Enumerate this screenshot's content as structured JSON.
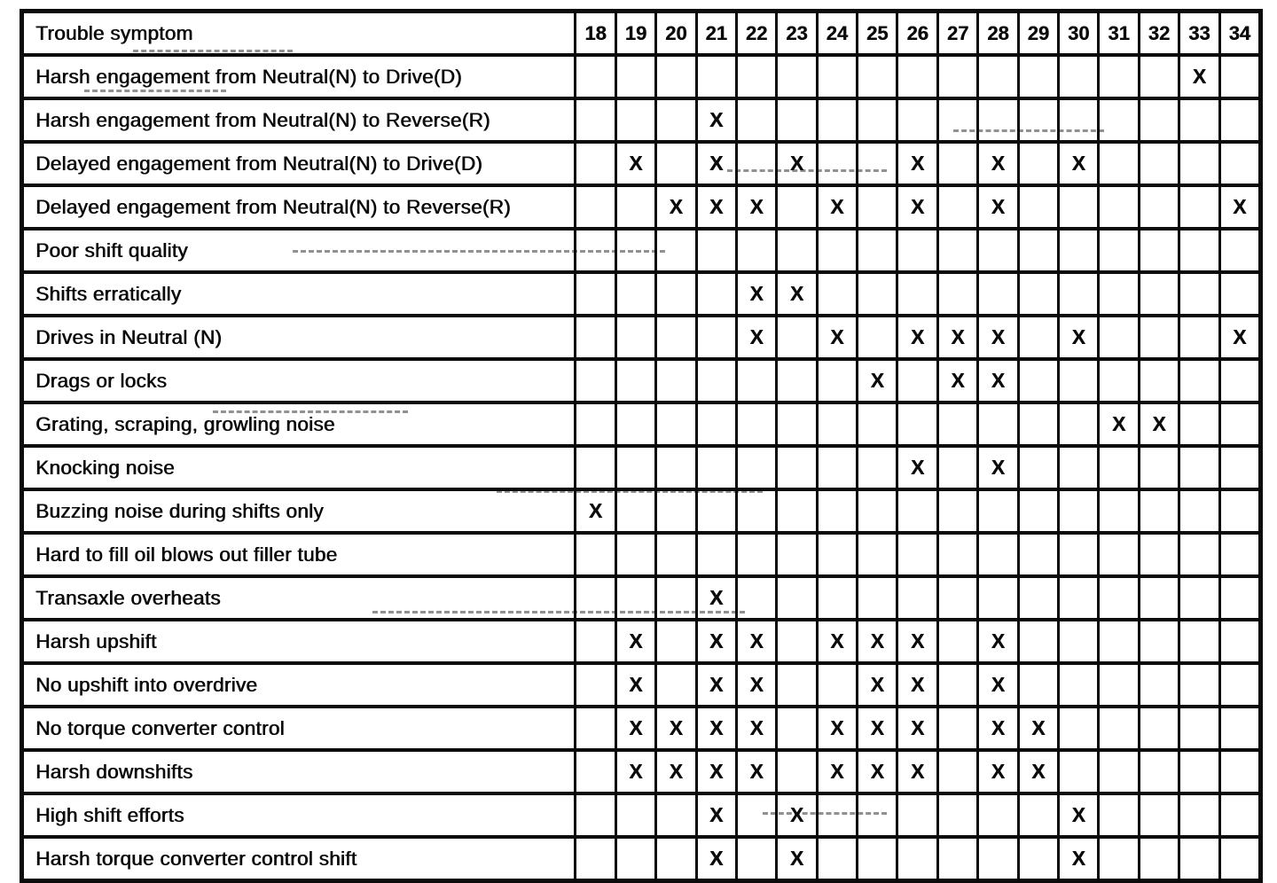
{
  "title": "Trouble symptom diagnosis chart",
  "colors": {
    "ink": "#0b0b0b",
    "paper": "#ffffff"
  },
  "table": {
    "header_label": "Trouble symptom",
    "columns": [
      "18",
      "19",
      "20",
      "21",
      "22",
      "23",
      "24",
      "25",
      "26",
      "27",
      "28",
      "29",
      "30",
      "31",
      "32",
      "33",
      "34"
    ],
    "mark_glyph": "X",
    "rows": [
      {
        "label": "Harsh engagement from Neutral(N) to Drive(D)",
        "marks": [
          "33"
        ]
      },
      {
        "label": "Harsh engagement from Neutral(N) to Reverse(R)",
        "marks": [
          "21"
        ]
      },
      {
        "label": "Delayed engagement from Neutral(N) to Drive(D)",
        "marks": [
          "19",
          "21",
          "23",
          "26",
          "28",
          "30"
        ]
      },
      {
        "label": "Delayed engagement from Neutral(N) to Reverse(R)",
        "marks": [
          "20",
          "21",
          "22",
          "24",
          "26",
          "28",
          "34"
        ]
      },
      {
        "label": "Poor shift quality",
        "marks": []
      },
      {
        "label": "Shifts erratically",
        "marks": [
          "22",
          "23"
        ]
      },
      {
        "label": "Drives in Neutral (N)",
        "marks": [
          "22",
          "24",
          "26",
          "27",
          "28",
          "30",
          "34"
        ]
      },
      {
        "label": "Drags or locks",
        "marks": [
          "25",
          "27",
          "28"
        ]
      },
      {
        "label": "Grating, scraping, growling noise",
        "marks": [
          "31",
          "32"
        ]
      },
      {
        "label": "Knocking noise",
        "marks": [
          "26",
          "28"
        ]
      },
      {
        "label": "Buzzing noise during shifts only",
        "marks": [
          "18"
        ]
      },
      {
        "label": "Hard to fill oil blows out filler tube",
        "marks": []
      },
      {
        "label": "Transaxle overheats",
        "marks": [
          "21"
        ]
      },
      {
        "label": "Harsh upshift",
        "marks": [
          "19",
          "21",
          "22",
          "24",
          "25",
          "26",
          "28"
        ]
      },
      {
        "label": "No upshift into overdrive",
        "marks": [
          "19",
          "21",
          "22",
          "25",
          "26",
          "28"
        ]
      },
      {
        "label": "No torque converter control",
        "marks": [
          "19",
          "20",
          "21",
          "22",
          "24",
          "25",
          "26",
          "28",
          "29"
        ]
      },
      {
        "label": "Harsh downshifts",
        "marks": [
          "19",
          "20",
          "21",
          "22",
          "24",
          "25",
          "26",
          "28",
          "29"
        ]
      },
      {
        "label": "High shift efforts",
        "marks": [
          "21",
          "23",
          "30"
        ]
      },
      {
        "label": "Harsh torque converter control shift",
        "marks": [
          "21",
          "23",
          "30"
        ]
      }
    ]
  }
}
